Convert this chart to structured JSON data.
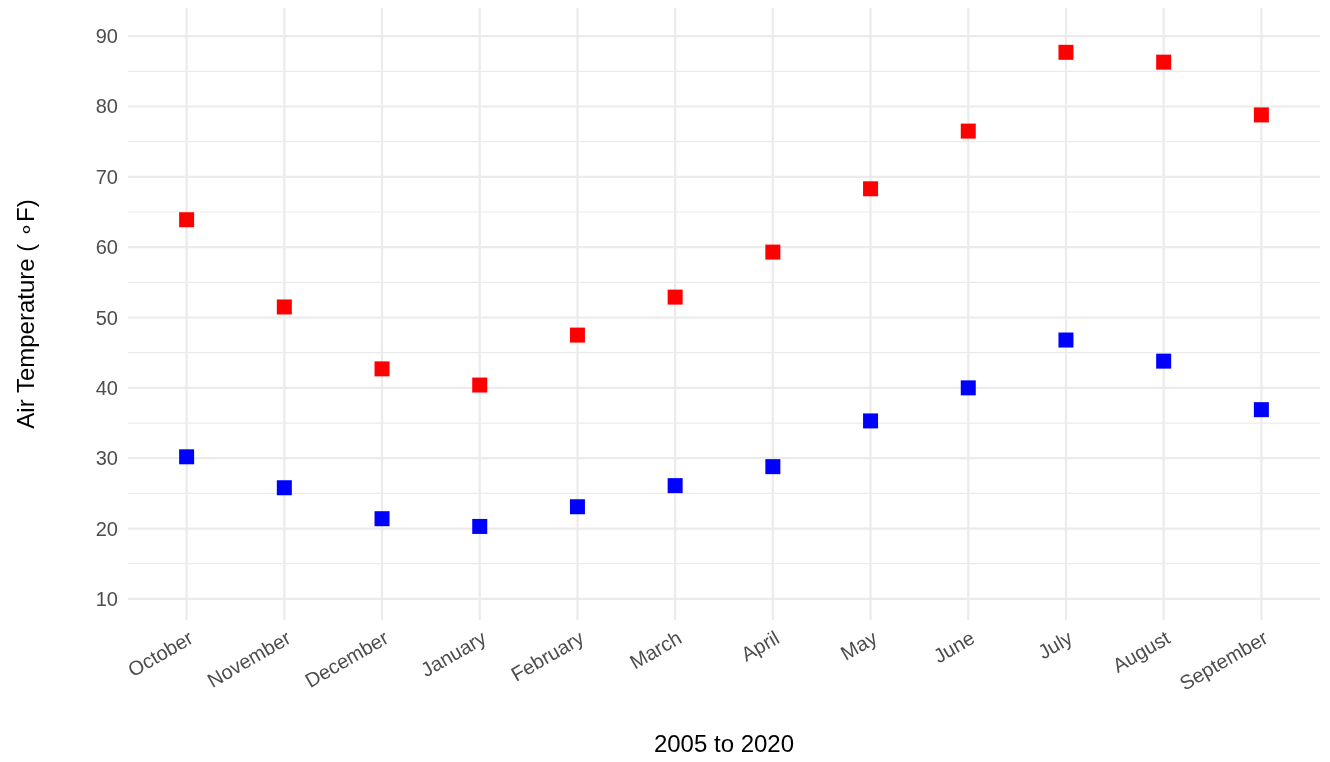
{
  "chart_data": {
    "type": "scatter",
    "xlabel": "2005 to 2020",
    "ylabel": "Air Temperature ( ∘F)",
    "categories": [
      "October",
      "November",
      "December",
      "January",
      "February",
      "March",
      "April",
      "May",
      "June",
      "July",
      "August",
      "September"
    ],
    "series": [
      {
        "color": "#ff0000",
        "values": [
          63.9,
          51.5,
          42.7,
          40.4,
          47.5,
          52.9,
          59.3,
          68.3,
          76.5,
          87.7,
          86.3,
          78.8
        ]
      },
      {
        "color": "#0000ff",
        "values": [
          30.2,
          25.8,
          21.4,
          20.3,
          23.1,
          26.1,
          28.8,
          35.3,
          40.0,
          46.8,
          43.8,
          36.9
        ]
      }
    ],
    "ylim": [
      7,
      94
    ],
    "yticks": [
      10,
      {
        "value": 15,
        "label": null
      },
      20,
      {
        "value": 25,
        "label": null
      },
      30,
      {
        "value": 35,
        "label": null
      },
      40,
      {
        "value": 45,
        "label": null
      },
      50,
      {
        "value": 55,
        "label": null
      },
      60,
      {
        "value": 65,
        "label": null
      },
      70,
      {
        "value": 75,
        "label": null
      },
      80,
      {
        "value": 85,
        "label": null
      },
      90
    ],
    "grid": true,
    "marker": "square"
  }
}
